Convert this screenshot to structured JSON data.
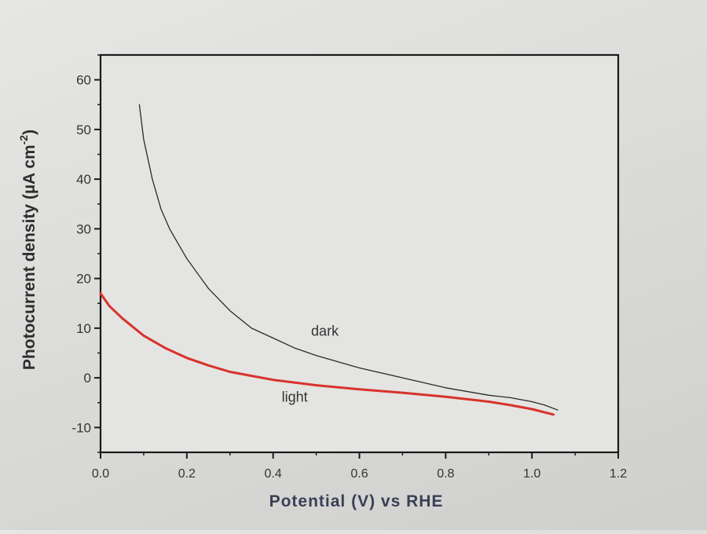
{
  "chart_data": {
    "type": "line",
    "xlabel": "Potential (V) vs RHE",
    "ylabel_main": "Photocurrent density (µA cm",
    "ylabel_sup": "-2",
    "ylabel_close": ")",
    "xlim": [
      0.0,
      1.2
    ],
    "ylim": [
      -15,
      65
    ],
    "xticks": [
      0.0,
      0.2,
      0.4,
      0.6,
      0.8,
      1.0,
      1.2
    ],
    "xtick_labels": [
      "0.0",
      "0.2",
      "0.4",
      "0.6",
      "0.8",
      "1.0",
      "1.2"
    ],
    "yticks": [
      -10,
      0,
      10,
      20,
      30,
      40,
      50,
      60
    ],
    "ytick_labels": [
      "-10",
      "0",
      "10",
      "20",
      "30",
      "40",
      "50",
      "60"
    ],
    "grid": false,
    "legend": "none",
    "series": [
      {
        "name": "dark",
        "color": "#2a2a2a",
        "x": [
          0.09,
          0.1,
          0.12,
          0.14,
          0.16,
          0.18,
          0.2,
          0.25,
          0.3,
          0.35,
          0.4,
          0.45,
          0.5,
          0.6,
          0.7,
          0.8,
          0.9,
          0.95,
          1.0,
          1.03,
          1.06
        ],
        "y": [
          55,
          48,
          40,
          34,
          30,
          27,
          24,
          18,
          13.5,
          10,
          8,
          6,
          4.5,
          2,
          0,
          -2,
          -3.5,
          -4,
          -4.8,
          -5.5,
          -6.5
        ]
      },
      {
        "name": "light",
        "color": "#d8322c",
        "x": [
          0.0,
          0.02,
          0.05,
          0.1,
          0.15,
          0.2,
          0.25,
          0.3,
          0.35,
          0.4,
          0.5,
          0.6,
          0.7,
          0.8,
          0.9,
          0.95,
          1.0,
          1.05
        ],
        "y": [
          17,
          14.5,
          12,
          8.5,
          6,
          4,
          2.5,
          1.2,
          0.4,
          -0.4,
          -1.5,
          -2.3,
          -3,
          -3.8,
          -4.8,
          -5.5,
          -6.3,
          -7.4
        ]
      }
    ],
    "annotations": [
      {
        "text": "dark",
        "x": 0.52,
        "y": 8.5
      },
      {
        "text": "light",
        "x": 0.45,
        "y": -4.8
      }
    ]
  }
}
